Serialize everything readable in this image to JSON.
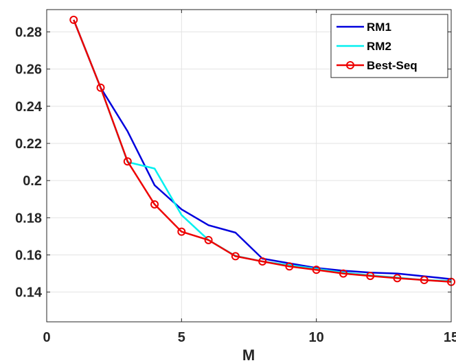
{
  "chart_data": {
    "type": "line",
    "title": "",
    "xlabel": "M",
    "ylabel": "",
    "xlim": [
      0,
      15
    ],
    "ylim": [
      0.124,
      0.292
    ],
    "xticks": [
      0,
      5,
      10,
      15
    ],
    "xtick_labels": [
      "0",
      "5",
      "10",
      "15"
    ],
    "yticks": [
      0.14,
      0.16,
      0.18,
      0.2,
      0.22,
      0.24,
      0.26,
      0.28
    ],
    "ytick_labels": [
      "0.14",
      "0.16",
      "0.18",
      "0.2",
      "0.22",
      "0.24",
      "0.26",
      "0.28"
    ],
    "grid": true,
    "legend_position": "top-right",
    "series": [
      {
        "name": "RM1",
        "color": "#0000dd",
        "marker": "none",
        "x": [
          1,
          2,
          3,
          4,
          5,
          6,
          7,
          8,
          9,
          10,
          11,
          12,
          13,
          14,
          15
        ],
        "y": [
          0.2865,
          0.25,
          0.2265,
          0.1975,
          0.1845,
          0.176,
          0.172,
          0.158,
          0.1555,
          0.153,
          0.1515,
          0.1505,
          0.15,
          0.1485,
          0.147
        ]
      },
      {
        "name": "RM2",
        "color": "#00f0f0",
        "marker": "none",
        "x": [
          1,
          2,
          3,
          4,
          5,
          6,
          7,
          8,
          9,
          10,
          11,
          12,
          13,
          14,
          15
        ],
        "y": [
          0.2865,
          0.25,
          0.21,
          0.2065,
          0.1815,
          0.168,
          0.1595,
          0.1565,
          0.1545,
          0.1525,
          0.1505,
          0.149,
          0.1478,
          0.1465,
          0.146
        ]
      },
      {
        "name": "Best-Seq",
        "color": "#ee0000",
        "marker": "circle",
        "x": [
          1,
          2,
          3,
          4,
          5,
          6,
          7,
          8,
          9,
          10,
          11,
          12,
          13,
          14,
          15
        ],
        "y": [
          0.2865,
          0.25,
          0.2103,
          0.1872,
          0.1725,
          0.168,
          0.1593,
          0.1565,
          0.1538,
          0.152,
          0.15,
          0.1487,
          0.1475,
          0.1465,
          0.1455
        ]
      }
    ]
  }
}
